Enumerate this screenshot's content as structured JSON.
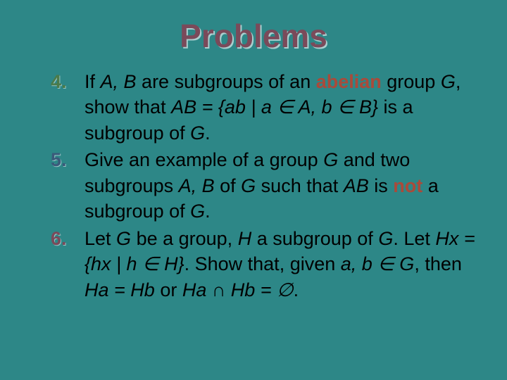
{
  "title": "Problems",
  "colors": {
    "background": "#2d8787",
    "title": "#7a4a5a",
    "num4": "#4a7a4a",
    "num5": "#3a5a7a",
    "num6": "#7a4a5a",
    "emph": "#aa4a3a",
    "text": "#000000"
  },
  "typography": {
    "font_family": "Comic Sans MS",
    "title_fontsize": 46,
    "body_fontsize": 27,
    "line_height": 1.35
  },
  "items": [
    {
      "num": "4.",
      "num_color": "#4a7a4a",
      "pre": "If ",
      "mid1": "A, B",
      "mid2": " are subgroups of an ",
      "emph": "abelian",
      "post1": " group ",
      "post2": "G",
      "post3": ", show that ",
      "post4": "AB = {ab | a ∈ A, b ∈ B}",
      "post5": " is a subgroup of ",
      "post6": "G",
      "post7": "."
    },
    {
      "num": "5.",
      "num_color": "#3a5a7a",
      "t1": "Give an example of a group ",
      "t2": "G",
      "t3": " and two subgroups ",
      "t4": "A, B",
      "t5": " of ",
      "t6": "G",
      "t7": " such that ",
      "t8": "AB",
      "t9": " is ",
      "emph": "not",
      "t10": " a subgroup of ",
      "t11": "G",
      "t12": "."
    },
    {
      "num": "6.",
      "num_color": "#7a4a5a",
      "t1": "Let ",
      "t2": "G",
      "t3": " be a group, ",
      "t4": "H",
      "t5": " a subgroup of ",
      "t6": "G",
      "t7": ". Let ",
      "t8": "Hx = {hx | h ∈ H}",
      "t9": ". Show that, given ",
      "t10": "a, b ∈ G",
      "t11": ", then ",
      "t12": "Ha = Hb",
      "t13": " or ",
      "t14": "Ha ∩ Hb = ∅",
      "t15": "."
    }
  ]
}
